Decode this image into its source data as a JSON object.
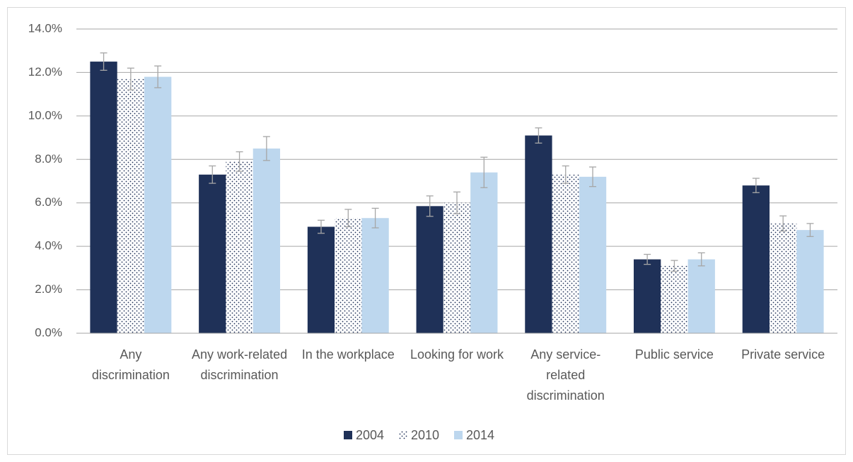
{
  "chart_data": {
    "type": "bar",
    "categories": [
      "Any discrimination",
      "Any work-related discrimination",
      "In the workplace",
      "Looking for work",
      "Any service-related discrimination",
      "Public service",
      "Private service"
    ],
    "series": [
      {
        "name": "2004",
        "color": "#1f3158",
        "values": [
          12.5,
          7.3,
          4.9,
          5.85,
          9.1,
          3.4,
          6.8
        ],
        "errors": [
          0.4,
          0.4,
          0.3,
          0.47,
          0.35,
          0.23,
          0.33
        ]
      },
      {
        "name": "2010",
        "color": "#1f3158",
        "pattern": "dots",
        "values": [
          11.7,
          7.9,
          5.3,
          6.0,
          7.3,
          3.1,
          5.05
        ],
        "errors": [
          0.5,
          0.45,
          0.4,
          0.5,
          0.4,
          0.25,
          0.35
        ]
      },
      {
        "name": "2014",
        "color": "#bdd7ee",
        "values": [
          11.8,
          8.5,
          5.3,
          7.4,
          7.2,
          3.4,
          4.75
        ],
        "errors": [
          0.5,
          0.55,
          0.45,
          0.7,
          0.45,
          0.3,
          0.3
        ]
      }
    ],
    "error_color": "#a6a6a6",
    "ylim": [
      0,
      14
    ],
    "yticks": [
      {
        "value": 0,
        "label": "0.0%"
      },
      {
        "value": 2,
        "label": "2.0%"
      },
      {
        "value": 4,
        "label": "4.0%"
      },
      {
        "value": 6,
        "label": "6.0%"
      },
      {
        "value": 8,
        "label": "8.0%"
      },
      {
        "value": 10,
        "label": "10.0%"
      },
      {
        "value": 12,
        "label": "12.0%"
      },
      {
        "value": 14,
        "label": "14.0%"
      }
    ],
    "grid": true,
    "legend": "bottom"
  }
}
